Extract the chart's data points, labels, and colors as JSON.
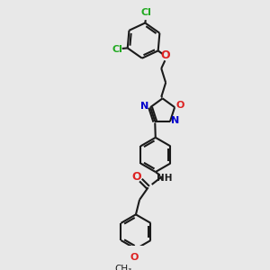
{
  "bg_color": "#e8e8e8",
  "bond_color": "#1a1a1a",
  "bond_width": 1.5,
  "cl_color": "#22aa22",
  "o_color": "#dd2222",
  "n_color": "#0000cc",
  "figsize": [
    3.0,
    3.0
  ],
  "dpi": 100,
  "xlim": [
    0,
    10
  ],
  "ylim": [
    0,
    10
  ]
}
